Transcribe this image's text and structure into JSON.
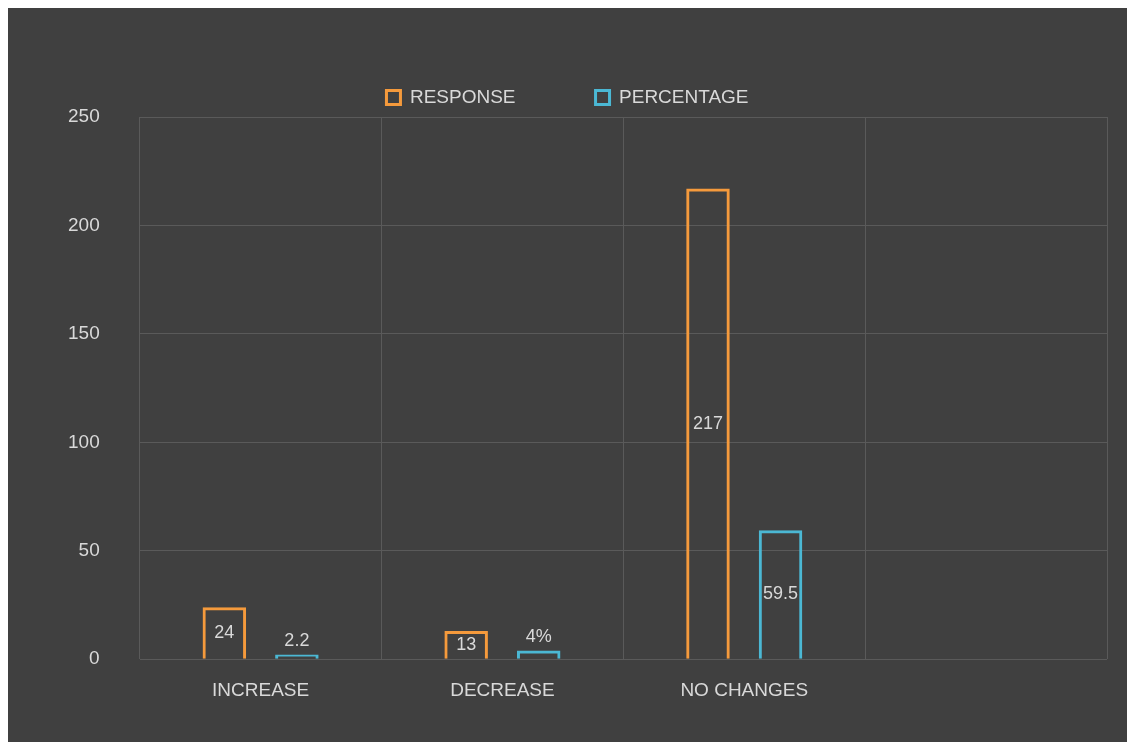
{
  "chart_data": {
    "type": "bar",
    "categories": [
      "INCREASE",
      "DECREASE",
      "NO CHANGES",
      null
    ],
    "series": [
      {
        "name": "RESPONSE",
        "color": "#f59a3c",
        "values": [
          24,
          13,
          217,
          null
        ],
        "value_labels": [
          "24",
          "13",
          "217",
          null
        ]
      },
      {
        "name": "PERCENTAGE",
        "color": "#4bb8d4",
        "values": [
          2.2,
          4,
          59.5,
          null
        ],
        "value_labels": [
          "2.2",
          "4%",
          "59.5",
          null
        ]
      }
    ],
    "ylim": [
      0,
      250
    ],
    "yticks": [
      0,
      50,
      100,
      150,
      200,
      250
    ],
    "grid": true,
    "legend": "top"
  }
}
